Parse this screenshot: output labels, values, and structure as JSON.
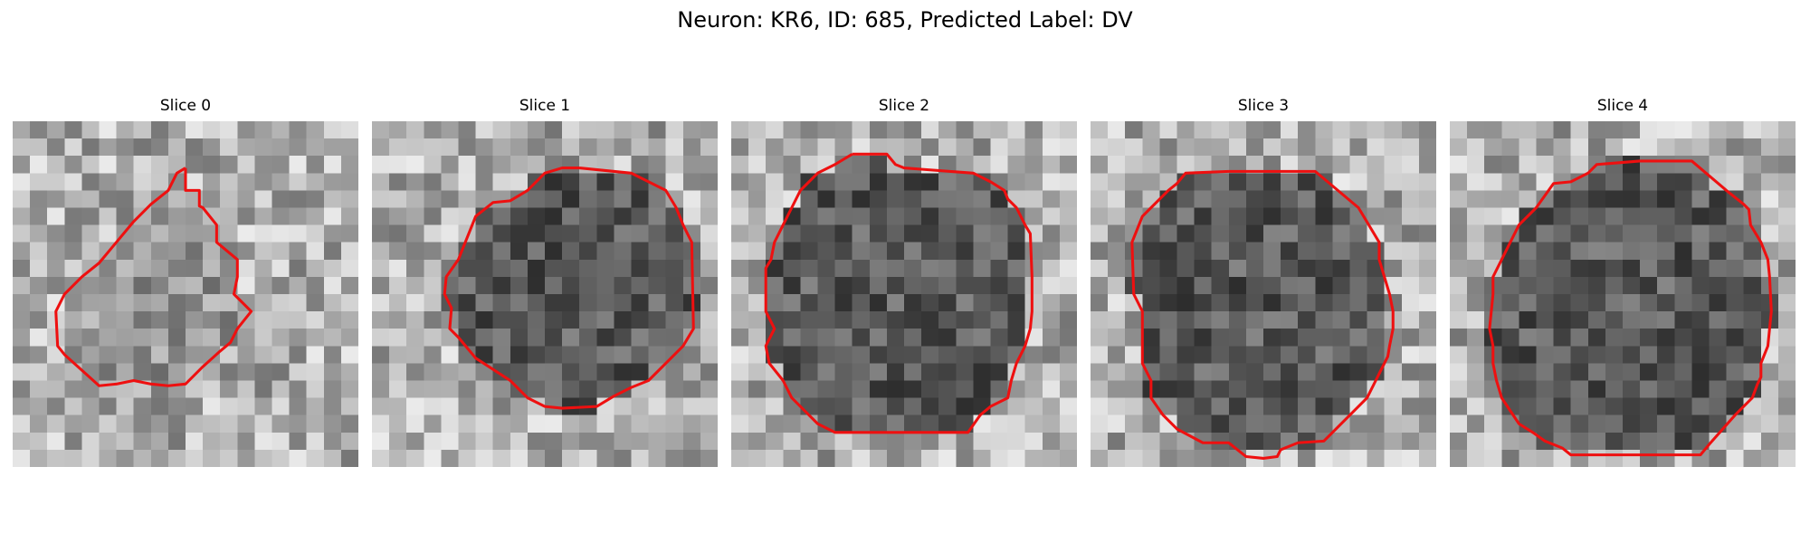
{
  "figure": {
    "title": "Neuron: KR6, ID: 685, Predicted Label: DV"
  },
  "panels": [
    {
      "title": "Slice 0",
      "contour": [
        [
          10,
          2.7
        ],
        [
          10,
          4
        ],
        [
          10.8,
          4
        ],
        [
          10.8,
          4.9
        ],
        [
          11,
          5
        ],
        [
          11.8,
          6
        ],
        [
          11.8,
          7
        ],
        [
          13,
          8
        ],
        [
          13,
          9
        ],
        [
          12.8,
          10
        ],
        [
          13.2,
          10.4
        ],
        [
          13.8,
          11
        ],
        [
          13,
          12
        ],
        [
          12.6,
          12.8
        ],
        [
          12,
          13.3
        ],
        [
          11,
          14.2
        ],
        [
          10,
          15.2
        ],
        [
          9,
          15.3
        ],
        [
          8,
          15.2
        ],
        [
          7,
          15
        ],
        [
          6,
          15.2
        ],
        [
          5,
          15.3
        ],
        [
          3,
          13.5
        ],
        [
          2.6,
          13
        ],
        [
          2.5,
          11
        ],
        [
          3,
          10
        ],
        [
          4,
          9
        ],
        [
          5,
          8.2
        ],
        [
          6,
          7
        ],
        [
          7,
          5.8
        ],
        [
          8,
          4.8
        ],
        [
          9,
          4
        ],
        [
          9.5,
          3
        ],
        [
          10,
          2.7
        ]
      ]
    },
    {
      "title": "Slice 1",
      "contour": [
        [
          12,
          2.7
        ],
        [
          15,
          3
        ],
        [
          17,
          4
        ],
        [
          17.6,
          5
        ],
        [
          18,
          6
        ],
        [
          18.5,
          7
        ],
        [
          18.6,
          12
        ],
        [
          18,
          13
        ],
        [
          17,
          14
        ],
        [
          16,
          15
        ],
        [
          15,
          15.4
        ],
        [
          14,
          15.9
        ],
        [
          13,
          16.5
        ],
        [
          11,
          16.6
        ],
        [
          10,
          16.5
        ],
        [
          9,
          16
        ],
        [
          8,
          15
        ],
        [
          6,
          13.7
        ],
        [
          5,
          12.5
        ],
        [
          4.5,
          12
        ],
        [
          4.6,
          10.8
        ],
        [
          4.2,
          10
        ],
        [
          4.3,
          9
        ],
        [
          5,
          8
        ],
        [
          5.4,
          7
        ],
        [
          6,
          5.5
        ],
        [
          7,
          4.7
        ],
        [
          8,
          4.6
        ],
        [
          9,
          4
        ],
        [
          10,
          3
        ],
        [
          11,
          2.7
        ],
        [
          12,
          2.7
        ]
      ]
    },
    {
      "title": "Slice 2",
      "contour": [
        [
          7,
          1.9
        ],
        [
          9,
          1.9
        ],
        [
          9.5,
          2.5
        ],
        [
          10,
          2.7
        ],
        [
          14,
          3
        ],
        [
          15,
          3.5
        ],
        [
          15.8,
          4
        ],
        [
          16,
          4.5
        ],
        [
          16.5,
          5
        ],
        [
          17,
          6
        ],
        [
          17.3,
          6.5
        ],
        [
          17.4,
          9
        ],
        [
          17.4,
          11
        ],
        [
          17.3,
          12
        ],
        [
          17,
          13
        ],
        [
          16.5,
          14
        ],
        [
          16.2,
          15
        ],
        [
          16,
          16
        ],
        [
          15,
          16.5
        ],
        [
          14.4,
          17
        ],
        [
          13.7,
          18
        ],
        [
          13,
          18
        ],
        [
          10,
          18
        ],
        [
          7,
          18
        ],
        [
          6,
          18
        ],
        [
          5,
          17.5
        ],
        [
          4.5,
          17
        ],
        [
          3.5,
          16
        ],
        [
          3,
          15
        ],
        [
          2.2,
          14
        ],
        [
          2,
          13
        ],
        [
          2.5,
          12
        ],
        [
          2,
          11
        ],
        [
          2,
          8.5
        ],
        [
          2.3,
          8
        ],
        [
          2.5,
          7
        ],
        [
          3,
          6
        ],
        [
          3.5,
          5
        ],
        [
          4,
          4
        ],
        [
          5,
          3
        ],
        [
          6,
          2.5
        ],
        [
          7,
          1.9
        ]
      ]
    },
    {
      "title": "Slice 3",
      "contour": [
        [
          8,
          2.9
        ],
        [
          13,
          2.9
        ],
        [
          15.5,
          5
        ],
        [
          16.7,
          7
        ],
        [
          16.7,
          8
        ],
        [
          17,
          9
        ],
        [
          17.3,
          10
        ],
        [
          17.5,
          11
        ],
        [
          17.5,
          12
        ],
        [
          17.3,
          13
        ],
        [
          17.2,
          13.6
        ],
        [
          17,
          14
        ],
        [
          16.5,
          15
        ],
        [
          16,
          16
        ],
        [
          15,
          17
        ],
        [
          14,
          18
        ],
        [
          13.5,
          18.5
        ],
        [
          12,
          18.6
        ],
        [
          11,
          19
        ],
        [
          10.8,
          19.4
        ],
        [
          10,
          19.5
        ],
        [
          9,
          19.4
        ],
        [
          8.5,
          19
        ],
        [
          8,
          18.6
        ],
        [
          6.5,
          18.6
        ],
        [
          5,
          17.8
        ],
        [
          4.2,
          17
        ],
        [
          3.5,
          16
        ],
        [
          3.5,
          15
        ],
        [
          3,
          14
        ],
        [
          3,
          12.8
        ],
        [
          3,
          11
        ],
        [
          2.5,
          10
        ],
        [
          2.4,
          7
        ],
        [
          2.8,
          6
        ],
        [
          3,
          5.5
        ],
        [
          3.5,
          5
        ],
        [
          4.5,
          4
        ],
        [
          5,
          3.6
        ],
        [
          5.5,
          3
        ],
        [
          8,
          2.9
        ]
      ]
    },
    {
      "title": "Slice 4",
      "contour": [
        [
          11,
          2.3
        ],
        [
          14,
          2.3
        ],
        [
          16,
          4
        ],
        [
          17,
          4.8
        ],
        [
          17.3,
          5.1
        ],
        [
          17.4,
          6
        ],
        [
          18,
          7
        ],
        [
          18.4,
          8
        ],
        [
          18.5,
          9
        ],
        [
          18.6,
          11
        ],
        [
          18.5,
          12
        ],
        [
          18.4,
          13
        ],
        [
          18,
          14
        ],
        [
          18,
          14.8
        ],
        [
          17.8,
          15.2
        ],
        [
          17.5,
          16
        ],
        [
          16.5,
          17
        ],
        [
          15,
          18.7
        ],
        [
          14.5,
          19.3
        ],
        [
          10,
          19.3
        ],
        [
          7,
          19.3
        ],
        [
          6.5,
          18.9
        ],
        [
          5.5,
          18.5
        ],
        [
          4.8,
          18
        ],
        [
          4,
          17.5
        ],
        [
          3,
          16
        ],
        [
          2.7,
          15
        ],
        [
          2.5,
          14
        ],
        [
          2.5,
          13
        ],
        [
          2.3,
          12
        ],
        [
          2.5,
          10
        ],
        [
          2.5,
          9
        ],
        [
          3.5,
          7
        ],
        [
          4,
          6
        ],
        [
          5,
          5
        ],
        [
          6,
          3.6
        ],
        [
          7,
          3.5
        ],
        [
          8,
          3
        ],
        [
          8.5,
          2.5
        ],
        [
          11,
          2.3
        ]
      ]
    }
  ]
}
